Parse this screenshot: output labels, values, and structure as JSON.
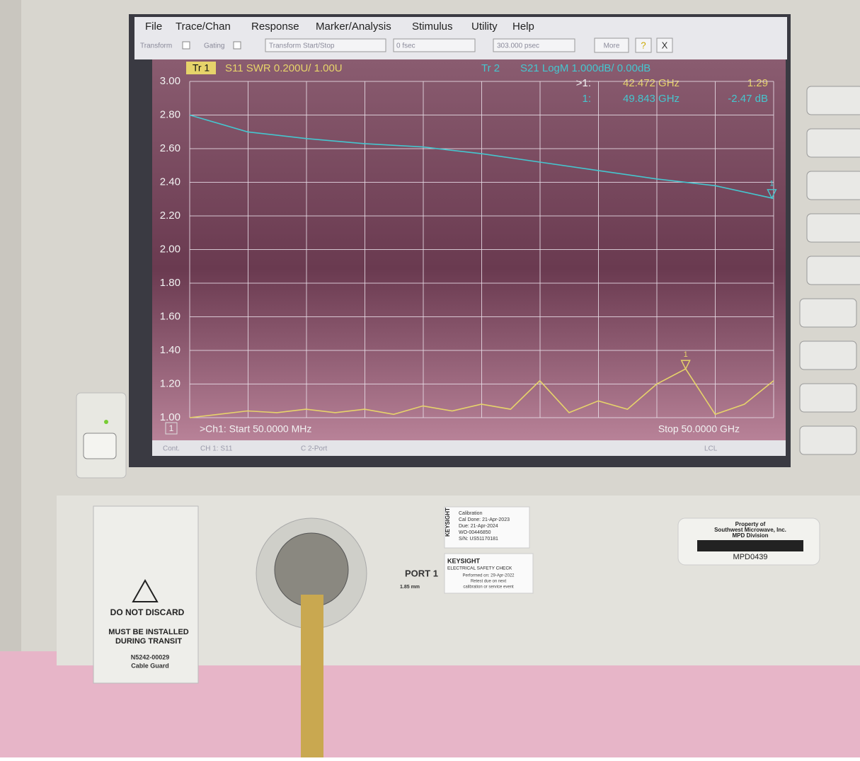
{
  "menu": [
    "File",
    "Trace/Chan",
    "Response",
    "Marker/Analysis",
    "Stimulus",
    "Utility",
    "Help"
  ],
  "toolbar": {
    "transform": "Transform",
    "gating": "Gating",
    "transform_mode": "Transform Start/Stop",
    "start": "0 fsec",
    "stop": "303.000 psec",
    "more": "More",
    "help": "?",
    "close": "X"
  },
  "chart_data": {
    "type": "line",
    "series": [
      {
        "name": "S11 SWR 0.200U/ 1.00U",
        "trace": "Tr 1",
        "color": "#e6d36a",
        "x": [
          0.05,
          2.5,
          5,
          7.5,
          10,
          12.5,
          15,
          17.5,
          20,
          22.5,
          25,
          27.5,
          30,
          32.5,
          35,
          37.5,
          40,
          42.472,
          45,
          47.5,
          50
        ],
        "values": [
          1.0,
          1.02,
          1.04,
          1.03,
          1.05,
          1.03,
          1.05,
          1.02,
          1.07,
          1.04,
          1.08,
          1.05,
          1.22,
          1.03,
          1.1,
          1.05,
          1.2,
          1.29,
          1.02,
          1.08,
          1.22
        ]
      },
      {
        "name": "S21 LogM 1.000dB/ 0.00dB",
        "trace": "Tr 2",
        "color": "#45c6cf",
        "axis": "y2",
        "x": [
          0.05,
          5,
          10,
          15,
          20,
          25,
          30,
          35,
          40,
          45,
          49.843,
          50
        ],
        "values": [
          0,
          -0.5,
          -0.7,
          -0.85,
          -0.95,
          -1.15,
          -1.4,
          -1.65,
          -1.9,
          -2.1,
          -2.47,
          -2.48
        ]
      }
    ],
    "markers": [
      {
        "name": ">1:",
        "x_label": "42.472 GHz",
        "value_label": "1.29",
        "flag": "1"
      },
      {
        "name": "1:",
        "x_label": "49.843 GHz",
        "value_label": "-2.47 dB",
        "flag": "1"
      }
    ],
    "xlim": [
      0.05,
      50
    ],
    "ylim": [
      1,
      3
    ],
    "y2lim": [
      -9,
      1
    ],
    "yticks": [
      {
        "value": 3,
        "label": "3.00"
      },
      {
        "value": 2.8,
        "label": "2.80"
      },
      {
        "value": 2.6,
        "label": "2.60"
      },
      {
        "value": 2.4,
        "label": "2.40"
      },
      {
        "value": 2.2,
        "label": "2.20"
      },
      {
        "value": 2,
        "label": "2.00"
      },
      {
        "value": 1.8,
        "label": "1.80"
      },
      {
        "value": 1.6,
        "label": "1.60"
      },
      {
        "value": 1.4,
        "label": "1.40"
      },
      {
        "value": 1.2,
        "label": "1.20"
      },
      {
        "value": 1,
        "label": "1.00"
      }
    ],
    "grid": true,
    "channel": "1",
    "start_label": ">Ch1:  Start 50.0000 MHz",
    "stop_label": "Stop  50.0000 GHz"
  },
  "status": [
    "Cont.",
    "CH 1:  S11",
    "C 2-Port",
    "LCL"
  ],
  "cable_guard": [
    "DO NOT DISCARD",
    "MUST BE INSTALLED",
    "DURING TRANSIT",
    "N5242-00029",
    "Cable Guard"
  ],
  "port": {
    "name": "PORT 1",
    "size": "1.85 mm"
  },
  "cal_sticker": [
    "KEYSIGHT",
    "Calibration",
    "Cal Done:  21-Apr-2023",
    "Due:         21-Apr-2024",
    "WO-00446850",
    "S/N: US51170181"
  ],
  "safety_sticker": [
    "KEYSIGHT",
    "ELECTRICAL SAFETY CHECK",
    "Performed on: 29-Apr-2022",
    "Retest due on next",
    "calibration or service event"
  ],
  "property_tag": [
    "Property of",
    "Southwest Microwave, Inc.",
    "MPD Division",
    "MPD0439"
  ]
}
